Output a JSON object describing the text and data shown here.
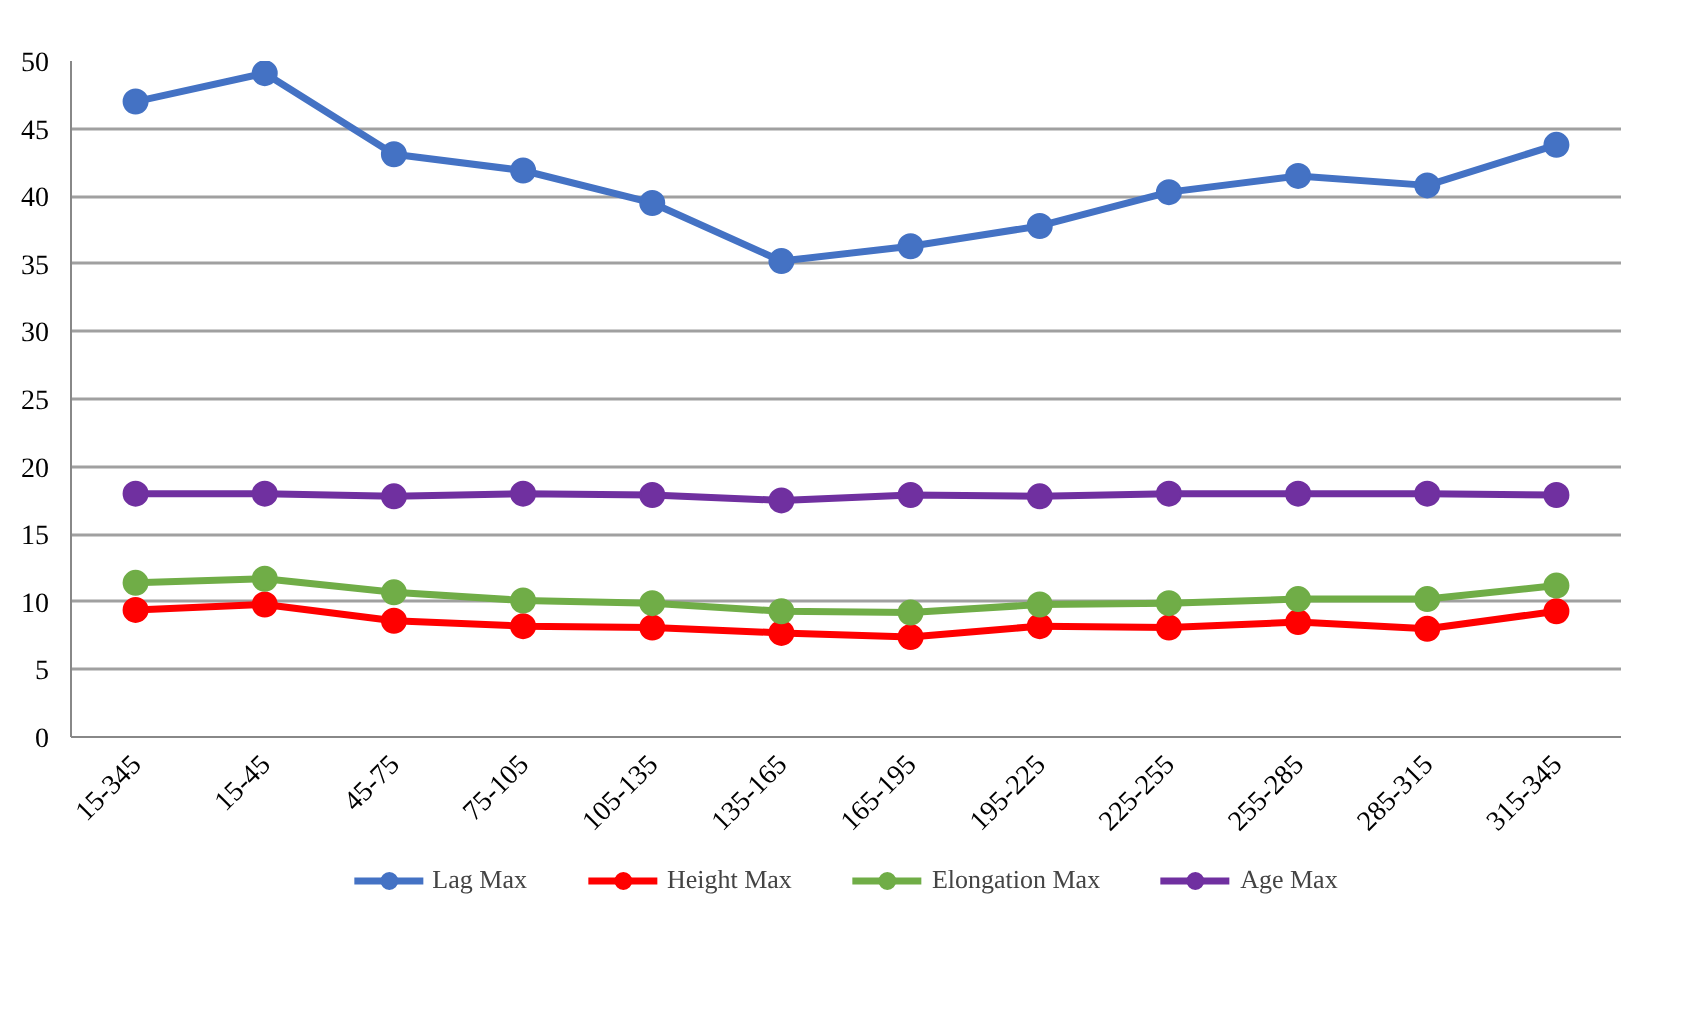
{
  "chart_data": {
    "type": "line",
    "categories": [
      "15-345",
      "15-45",
      "45-75",
      "75-105",
      "105-135",
      "135-165",
      "165-195",
      "195-225",
      "225-255",
      "255-285",
      "285-315",
      "315-345"
    ],
    "series": [
      {
        "name": "Lag Max",
        "color": "#4472c4",
        "values": [
          47.0,
          49.1,
          43.1,
          41.9,
          39.5,
          35.2,
          36.3,
          37.8,
          40.3,
          41.5,
          40.8,
          43.8
        ]
      },
      {
        "name": "Height Max",
        "color": "#ff0000",
        "values": [
          9.4,
          9.8,
          8.6,
          8.2,
          8.1,
          7.7,
          7.4,
          8.2,
          8.1,
          8.5,
          8.0,
          9.3
        ]
      },
      {
        "name": "Elongation Max",
        "color": "#70ad47",
        "values": [
          11.4,
          11.7,
          10.7,
          10.1,
          9.9,
          9.3,
          9.2,
          9.8,
          9.9,
          10.2,
          10.2,
          11.2
        ]
      },
      {
        "name": "Age Max",
        "color": "#7030a0",
        "values": [
          18.0,
          18.0,
          17.8,
          18.0,
          17.9,
          17.5,
          17.9,
          17.8,
          18.0,
          18.0,
          18.0,
          17.9
        ]
      }
    ],
    "ylim": [
      0,
      50
    ],
    "yticks": [
      0,
      5,
      10,
      15,
      20,
      25,
      30,
      35,
      40,
      45,
      50
    ],
    "grid": "y",
    "legend": "bottom",
    "marker": "circle",
    "line_style": "solid"
  }
}
